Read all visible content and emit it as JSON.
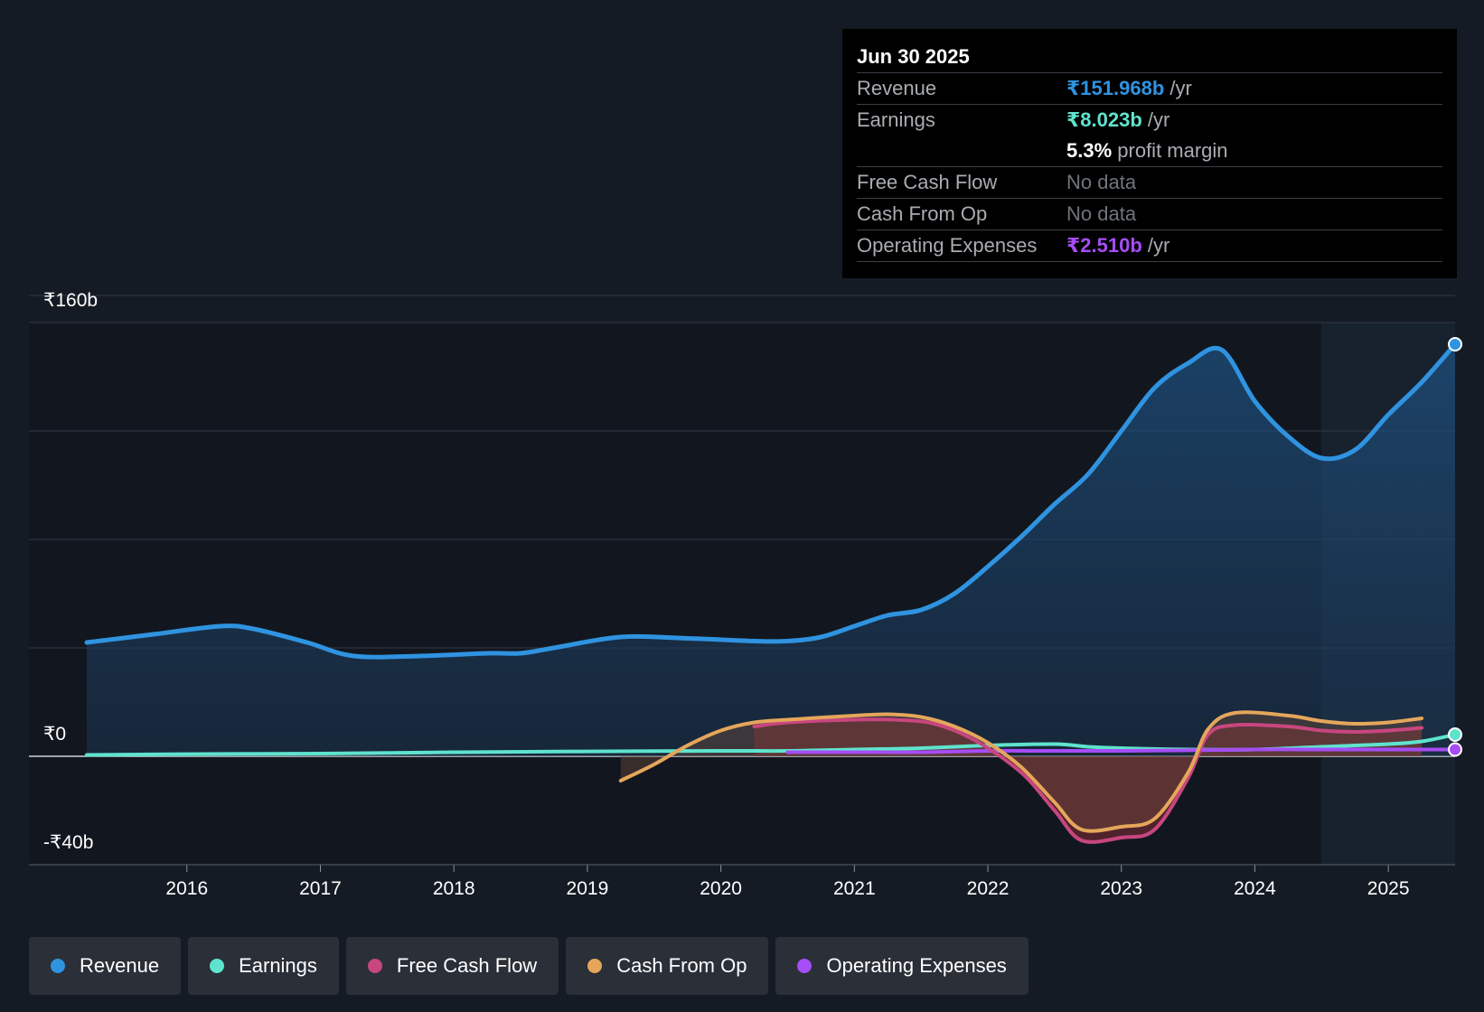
{
  "tooltip": {
    "date": "Jun 30 2025",
    "rows": [
      {
        "label": "Revenue",
        "value": "₹151.968b",
        "suffix": " /yr",
        "color": "#2f93e0"
      },
      {
        "label": "Earnings",
        "value": "₹8.023b",
        "suffix": " /yr",
        "color": "#5fe3cd"
      },
      {
        "label": "",
        "value": "5.3%",
        "suffix": " profit margin",
        "color": "#ffffff"
      },
      {
        "label": "Free Cash Flow",
        "value": "No data",
        "suffix": "",
        "color": "#6f747b"
      },
      {
        "label": "Cash From Op",
        "value": "No data",
        "suffix": "",
        "color": "#6f747b"
      },
      {
        "label": "Operating Expenses",
        "value": "₹2.510b",
        "suffix": " /yr",
        "color": "#a64df5"
      }
    ]
  },
  "chart_data": {
    "type": "area",
    "ylim": [
      -40,
      160
    ],
    "y_tick_labels": [
      "₹160b",
      "₹0",
      "-₹40b"
    ],
    "x_tick_labels": [
      "2016",
      "2017",
      "2018",
      "2019",
      "2020",
      "2021",
      "2022",
      "2023",
      "2024",
      "2025"
    ],
    "xlim": [
      2015.25,
      2025.5
    ],
    "forecast_shade_start": 2024.5,
    "series": [
      {
        "name": "Revenue",
        "color": "#2f93e0",
        "fill": true,
        "points": [
          [
            2015.25,
            42
          ],
          [
            2015.75,
            45
          ],
          [
            2016.25,
            48
          ],
          [
            2016.5,
            47
          ],
          [
            2016.9,
            42
          ],
          [
            2017.25,
            37
          ],
          [
            2017.75,
            37
          ],
          [
            2018.25,
            38
          ],
          [
            2018.5,
            38
          ],
          [
            2018.75,
            40
          ],
          [
            2019.25,
            44
          ],
          [
            2019.75,
            43.5
          ],
          [
            2020.25,
            42.5
          ],
          [
            2020.5,
            42.5
          ],
          [
            2020.75,
            44
          ],
          [
            2021.0,
            48
          ],
          [
            2021.25,
            52
          ],
          [
            2021.5,
            54
          ],
          [
            2021.75,
            60
          ],
          [
            2022.0,
            70
          ],
          [
            2022.25,
            81
          ],
          [
            2022.5,
            93
          ],
          [
            2022.75,
            104
          ],
          [
            2023.0,
            120
          ],
          [
            2023.25,
            136
          ],
          [
            2023.5,
            145
          ],
          [
            2023.75,
            150
          ],
          [
            2024.0,
            131
          ],
          [
            2024.25,
            118
          ],
          [
            2024.5,
            110
          ],
          [
            2024.75,
            113
          ],
          [
            2025.0,
            126
          ],
          [
            2025.25,
            138
          ],
          [
            2025.5,
            152
          ]
        ]
      },
      {
        "name": "Earnings",
        "color": "#5fe3cd",
        "fill": false,
        "points": [
          [
            2015.25,
            0.5
          ],
          [
            2016.0,
            0.8
          ],
          [
            2017.0,
            1.0
          ],
          [
            2018.0,
            1.5
          ],
          [
            2019.0,
            1.8
          ],
          [
            2020.0,
            2.0
          ],
          [
            2020.5,
            2.0
          ],
          [
            2021.0,
            2.5
          ],
          [
            2021.5,
            3.0
          ],
          [
            2022.0,
            4.0
          ],
          [
            2022.5,
            4.5
          ],
          [
            2022.75,
            3.5
          ],
          [
            2023.0,
            3.0
          ],
          [
            2023.5,
            2.5
          ],
          [
            2024.0,
            2.5
          ],
          [
            2024.5,
            3.5
          ],
          [
            2025.0,
            4.5
          ],
          [
            2025.25,
            5.5
          ],
          [
            2025.5,
            8.0
          ]
        ]
      },
      {
        "name": "Free Cash Flow",
        "color": "#c8467f",
        "fill": true,
        "points": [
          [
            2020.25,
            11
          ],
          [
            2020.5,
            12.5
          ],
          [
            2021.0,
            13.5
          ],
          [
            2021.3,
            13.5
          ],
          [
            2021.6,
            12
          ],
          [
            2021.9,
            6
          ],
          [
            2022.25,
            -6
          ],
          [
            2022.5,
            -20
          ],
          [
            2022.7,
            -31
          ],
          [
            2023.0,
            -30
          ],
          [
            2023.25,
            -27
          ],
          [
            2023.5,
            -8
          ],
          [
            2023.65,
            8
          ],
          [
            2023.85,
            11.5
          ],
          [
            2024.25,
            11
          ],
          [
            2024.5,
            9.5
          ],
          [
            2024.75,
            9
          ],
          [
            2025.0,
            9.5
          ],
          [
            2025.25,
            10.5
          ]
        ]
      },
      {
        "name": "Cash From Op",
        "color": "#e5a65b",
        "fill": true,
        "points": [
          [
            2019.25,
            -9
          ],
          [
            2019.5,
            -3
          ],
          [
            2019.75,
            4
          ],
          [
            2020.0,
            9.5
          ],
          [
            2020.25,
            12.5
          ],
          [
            2020.5,
            13.5
          ],
          [
            2021.0,
            15
          ],
          [
            2021.25,
            15.5
          ],
          [
            2021.5,
            14.5
          ],
          [
            2021.75,
            11
          ],
          [
            2022.0,
            5
          ],
          [
            2022.25,
            -4
          ],
          [
            2022.5,
            -17
          ],
          [
            2022.7,
            -27
          ],
          [
            2023.0,
            -26
          ],
          [
            2023.25,
            -23
          ],
          [
            2023.5,
            -6
          ],
          [
            2023.65,
            10
          ],
          [
            2023.85,
            16
          ],
          [
            2024.25,
            15
          ],
          [
            2024.5,
            13
          ],
          [
            2024.75,
            12
          ],
          [
            2025.0,
            12.5
          ],
          [
            2025.25,
            14
          ]
        ]
      },
      {
        "name": "Operating Expenses",
        "color": "#a64df5",
        "fill": false,
        "points": [
          [
            2020.5,
            1.5
          ],
          [
            2021.0,
            1.5
          ],
          [
            2021.5,
            1.5
          ],
          [
            2022.0,
            2.0
          ],
          [
            2022.5,
            2.0
          ],
          [
            2023.0,
            2.0
          ],
          [
            2023.5,
            2.2
          ],
          [
            2024.0,
            2.5
          ],
          [
            2024.5,
            2.5
          ],
          [
            2025.0,
            2.5
          ],
          [
            2025.5,
            2.5
          ]
        ]
      }
    ]
  },
  "legend": [
    {
      "label": "Revenue",
      "color": "#2f93e0"
    },
    {
      "label": "Earnings",
      "color": "#5fe3cd"
    },
    {
      "label": "Free Cash Flow",
      "color": "#c8467f"
    },
    {
      "label": "Cash From Op",
      "color": "#e5a65b"
    },
    {
      "label": "Operating Expenses",
      "color": "#a64df5"
    }
  ]
}
